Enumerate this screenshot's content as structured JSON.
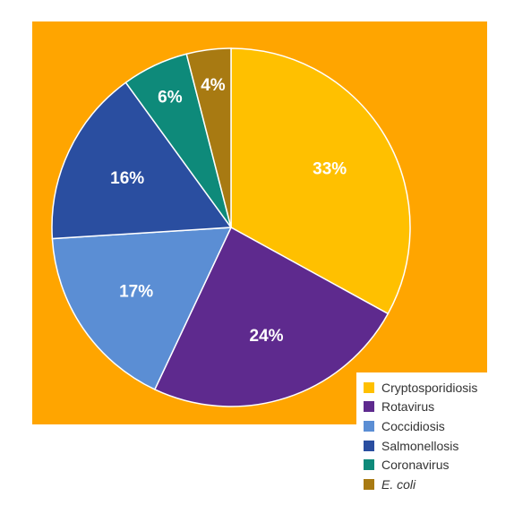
{
  "chart_data": {
    "type": "pie",
    "title": "",
    "background_color": "#FFA500",
    "labels_on_slices": true,
    "legend_position": "bottom-right",
    "slices": [
      {
        "label": "Cryptosporidiosis",
        "value": 33,
        "display": "33%",
        "color": "#FFC000"
      },
      {
        "label": "Rotavirus",
        "value": 24,
        "display": "24%",
        "color": "#5E2A8E"
      },
      {
        "label": "Coccidiosis",
        "value": 17,
        "display": "17%",
        "color": "#5B8ED4"
      },
      {
        "label": "Salmonellosis",
        "value": 16,
        "display": "16%",
        "color": "#2A4EA0"
      },
      {
        "label": "Coronavirus",
        "value": 6,
        "display": "6%",
        "color": "#0E8A7A"
      },
      {
        "label": "E. coli",
        "value": 4,
        "display": "4%",
        "color": "#A87A12",
        "italic": true
      }
    ]
  }
}
